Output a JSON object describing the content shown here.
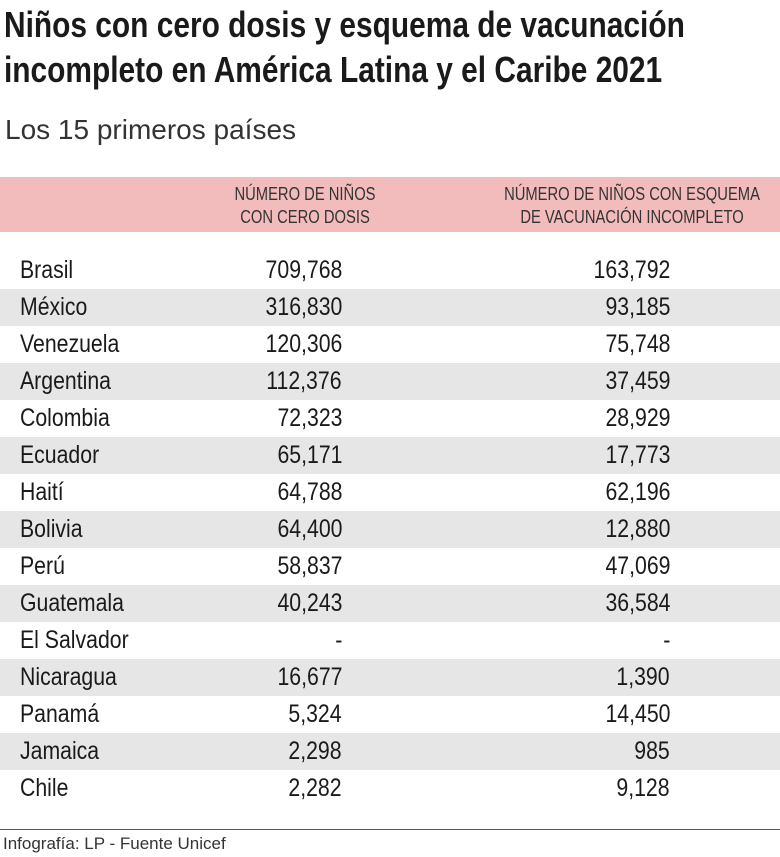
{
  "header": {
    "title": "Niños con cero dosis y esquema de vacunación\nincompleto en América Latina y el Caribe 2021",
    "subtitle": "Los 15 primeros países"
  },
  "table": {
    "columns": [
      "NÚMERO DE NIÑOS\nCON CERO DOSIS",
      "NÚMERO DE NIÑOS CON ESQUEMA\nDE VACUNACIÓN INCOMPLETO"
    ],
    "rows": [
      [
        "Brasil",
        "709,768",
        "163,792"
      ],
      [
        "México",
        "316,830",
        "93,185"
      ],
      [
        "Venezuela",
        "120,306",
        "75,748"
      ],
      [
        "Argentina",
        "112,376",
        "37,459"
      ],
      [
        "Colombia",
        "72,323",
        "28,929"
      ],
      [
        "Ecuador",
        "65,171",
        "17,773"
      ],
      [
        "Haití",
        "64,788",
        "62,196"
      ],
      [
        "Bolivia",
        "64,400",
        "12,880"
      ],
      [
        "Perú",
        "58,837",
        "47,069"
      ],
      [
        "Guatemala",
        "40,243",
        "36,584"
      ],
      [
        "El Salvador",
        "-",
        "-"
      ],
      [
        "Nicaragua",
        "16,677",
        "1,390"
      ],
      [
        "Panamá",
        "5,324",
        "14,450"
      ],
      [
        "Jamaica",
        "2,298",
        "985"
      ],
      [
        "Chile",
        "2,282",
        "9,128"
      ]
    ]
  },
  "footer": "Infografía: LP - Fuente Unicef"
}
